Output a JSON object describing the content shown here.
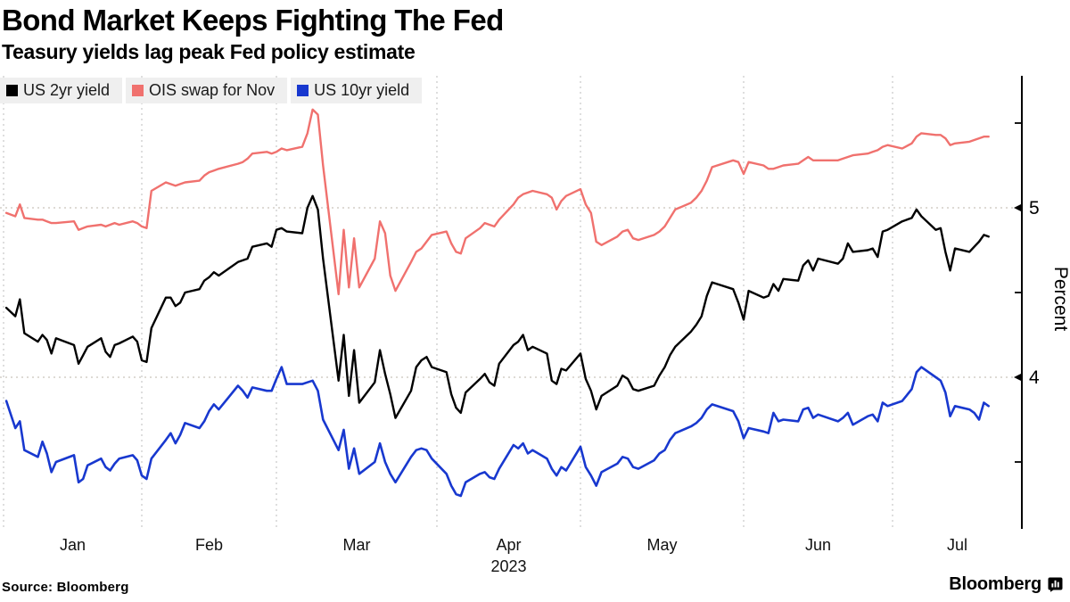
{
  "header": {
    "title": "Bond Market Keeps Fighting The Fed",
    "subtitle": "Teasury yields lag peak Fed policy estimate"
  },
  "legend": [
    {
      "label": "US 2yr yield",
      "color": "#000000"
    },
    {
      "label": "OIS swap for Nov",
      "color": "#f0716e"
    },
    {
      "label": "US 10yr yield",
      "color": "#1838cf"
    }
  ],
  "footer": {
    "source": "Source: Bloomberg",
    "brand": "Bloomberg",
    "brand_icon": "bloomberg-bars-bubble-icon"
  },
  "chart_data": {
    "type": "line",
    "title": "Bond Market Keeps Fighting The Fed",
    "subtitle": "Teasury yields lag peak Fed policy estimate",
    "ylabel": "Percent",
    "ylim": [
      3.1,
      5.8
    ],
    "y_ticks_labeled": [
      4,
      5
    ],
    "y_ticks_minor": [
      3.5,
      4.5,
      5.5
    ],
    "grid": "dotted vertical month lines and dotted horizontal lines at labeled ticks",
    "legend_position": "top-left",
    "x_months": [
      "Jan",
      "Feb",
      "Mar",
      "Apr",
      "May",
      "Jun",
      "Jul"
    ],
    "x_year": "2023",
    "x_dates": [
      "01-02",
      "01-04",
      "01-05",
      "01-06",
      "01-09",
      "01-10",
      "01-11",
      "01-12",
      "01-13",
      "01-17",
      "01-18",
      "01-19",
      "01-20",
      "01-23",
      "01-24",
      "01-25",
      "01-26",
      "01-27",
      "01-30",
      "01-31",
      "02-01",
      "02-02",
      "02-03",
      "02-06",
      "02-07",
      "02-08",
      "02-09",
      "02-10",
      "02-13",
      "02-14",
      "02-15",
      "02-16",
      "02-17",
      "02-21",
      "02-22",
      "02-23",
      "02-24",
      "02-27",
      "02-28",
      "03-01",
      "03-02",
      "03-03",
      "03-06",
      "03-07",
      "03-08",
      "03-09",
      "03-10",
      "03-13",
      "03-14",
      "03-15",
      "03-16",
      "03-17",
      "03-20",
      "03-21",
      "03-22",
      "03-23",
      "03-24",
      "03-27",
      "03-28",
      "03-29",
      "03-30",
      "03-31",
      "04-03",
      "04-04",
      "04-05",
      "04-06",
      "04-07",
      "04-10",
      "04-11",
      "04-12",
      "04-13",
      "04-14",
      "04-17",
      "04-18",
      "04-19",
      "04-20",
      "04-21",
      "04-24",
      "04-25",
      "04-26",
      "04-27",
      "04-28",
      "05-01",
      "05-02",
      "05-03",
      "05-04",
      "05-05",
      "05-08",
      "05-09",
      "05-10",
      "05-11",
      "05-12",
      "05-15",
      "05-16",
      "05-17",
      "05-18",
      "05-19",
      "05-22",
      "05-23",
      "05-24",
      "05-25",
      "05-26",
      "05-30",
      "05-31",
      "06-01",
      "06-02",
      "06-05",
      "06-06",
      "06-07",
      "06-08",
      "06-09",
      "06-12",
      "06-13",
      "06-14",
      "06-15",
      "06-16",
      "06-20",
      "06-21",
      "06-22",
      "06-23",
      "06-26",
      "06-27",
      "06-28",
      "06-29",
      "06-30",
      "07-03",
      "07-05",
      "07-06",
      "07-07",
      "07-10",
      "07-11",
      "07-12",
      "07-13",
      "07-14",
      "07-17",
      "07-18",
      "07-19",
      "07-20",
      "07-21"
    ],
    "series": [
      {
        "name": "US 2yr yield",
        "color": "#000000",
        "values": [
          4.41,
          4.36,
          4.46,
          4.26,
          4.21,
          4.25,
          4.22,
          4.14,
          4.23,
          4.19,
          4.08,
          4.13,
          4.18,
          4.23,
          4.15,
          4.12,
          4.19,
          4.2,
          4.24,
          4.21,
          4.1,
          4.09,
          4.29,
          4.47,
          4.47,
          4.42,
          4.44,
          4.5,
          4.52,
          4.57,
          4.59,
          4.62,
          4.6,
          4.68,
          4.69,
          4.7,
          4.77,
          4.79,
          4.77,
          4.87,
          4.88,
          4.86,
          4.85,
          5.0,
          5.07,
          4.99,
          4.7,
          3.98,
          4.25,
          3.89,
          4.16,
          3.85,
          3.97,
          4.16,
          4.02,
          3.9,
          3.76,
          3.92,
          4.06,
          4.1,
          4.12,
          4.06,
          4.03,
          3.9,
          3.82,
          3.79,
          3.91,
          3.99,
          4.02,
          3.97,
          3.95,
          4.08,
          4.19,
          4.21,
          4.25,
          4.16,
          4.18,
          4.14,
          3.98,
          3.96,
          4.05,
          4.04,
          4.14,
          3.99,
          3.92,
          3.81,
          3.89,
          3.95,
          4.01,
          3.99,
          3.93,
          3.92,
          3.95,
          4.01,
          4.06,
          4.13,
          4.18,
          4.27,
          4.31,
          4.36,
          4.48,
          4.56,
          4.52,
          4.44,
          4.34,
          4.51,
          4.47,
          4.48,
          4.55,
          4.51,
          4.58,
          4.57,
          4.66,
          4.69,
          4.63,
          4.7,
          4.67,
          4.7,
          4.79,
          4.74,
          4.75,
          4.76,
          4.71,
          4.86,
          4.87,
          4.92,
          4.94,
          4.99,
          4.95,
          4.87,
          4.88,
          4.74,
          4.63,
          4.76,
          4.74,
          4.77,
          4.8,
          4.84,
          4.83
        ]
      },
      {
        "name": "OIS swap for Nov",
        "color": "#f0716e",
        "values": [
          4.97,
          4.95,
          5.02,
          4.94,
          4.93,
          4.93,
          4.92,
          4.91,
          4.91,
          4.92,
          4.87,
          4.88,
          4.89,
          4.9,
          4.89,
          4.9,
          4.91,
          4.9,
          4.92,
          4.91,
          4.89,
          4.88,
          5.1,
          5.15,
          5.14,
          5.13,
          5.14,
          5.15,
          5.16,
          5.19,
          5.21,
          5.22,
          5.23,
          5.26,
          5.27,
          5.29,
          5.32,
          5.33,
          5.32,
          5.33,
          5.35,
          5.34,
          5.36,
          5.44,
          5.58,
          5.55,
          5.25,
          4.49,
          4.87,
          4.53,
          4.82,
          4.53,
          4.7,
          4.92,
          4.85,
          4.6,
          4.51,
          4.68,
          4.74,
          4.76,
          4.8,
          4.84,
          4.86,
          4.79,
          4.74,
          4.73,
          4.82,
          4.88,
          4.91,
          4.9,
          4.89,
          4.93,
          5.02,
          5.06,
          5.08,
          5.09,
          5.1,
          5.08,
          5.06,
          4.99,
          5.04,
          5.07,
          5.11,
          5.02,
          4.97,
          4.8,
          4.78,
          4.83,
          4.86,
          4.87,
          4.82,
          4.81,
          4.84,
          4.86,
          4.89,
          4.94,
          4.99,
          5.03,
          5.06,
          5.1,
          5.16,
          5.24,
          5.28,
          5.27,
          5.2,
          5.27,
          5.25,
          5.23,
          5.23,
          5.24,
          5.25,
          5.26,
          5.28,
          5.3,
          5.28,
          5.28,
          5.28,
          5.29,
          5.3,
          5.31,
          5.32,
          5.33,
          5.34,
          5.36,
          5.37,
          5.35,
          5.38,
          5.42,
          5.44,
          5.43,
          5.43,
          5.41,
          5.37,
          5.38,
          5.39,
          5.4,
          5.41,
          5.42,
          5.42
        ]
      },
      {
        "name": "US 10yr yield",
        "color": "#1838cf",
        "values": [
          3.86,
          3.7,
          3.74,
          3.57,
          3.53,
          3.62,
          3.55,
          3.44,
          3.5,
          3.54,
          3.38,
          3.4,
          3.48,
          3.52,
          3.47,
          3.45,
          3.49,
          3.52,
          3.54,
          3.51,
          3.42,
          3.4,
          3.52,
          3.63,
          3.67,
          3.61,
          3.66,
          3.73,
          3.7,
          3.74,
          3.8,
          3.84,
          3.81,
          3.95,
          3.92,
          3.88,
          3.94,
          3.92,
          3.92,
          3.99,
          4.06,
          3.96,
          3.96,
          3.97,
          3.98,
          3.92,
          3.75,
          3.57,
          3.69,
          3.46,
          3.58,
          3.43,
          3.5,
          3.61,
          3.5,
          3.43,
          3.38,
          3.53,
          3.57,
          3.58,
          3.57,
          3.52,
          3.43,
          3.36,
          3.31,
          3.3,
          3.38,
          3.43,
          3.44,
          3.41,
          3.4,
          3.46,
          3.6,
          3.58,
          3.61,
          3.55,
          3.57,
          3.52,
          3.46,
          3.42,
          3.47,
          3.45,
          3.59,
          3.47,
          3.42,
          3.36,
          3.44,
          3.49,
          3.53,
          3.52,
          3.47,
          3.46,
          3.51,
          3.55,
          3.57,
          3.63,
          3.67,
          3.71,
          3.73,
          3.76,
          3.81,
          3.84,
          3.8,
          3.74,
          3.64,
          3.7,
          3.68,
          3.67,
          3.79,
          3.74,
          3.75,
          3.74,
          3.81,
          3.82,
          3.76,
          3.78,
          3.74,
          3.76,
          3.79,
          3.72,
          3.77,
          3.78,
          3.74,
          3.85,
          3.83,
          3.86,
          3.93,
          4.03,
          4.06,
          4.0,
          3.98,
          3.91,
          3.77,
          3.83,
          3.81,
          3.79,
          3.75,
          3.85,
          3.83
        ]
      }
    ]
  }
}
